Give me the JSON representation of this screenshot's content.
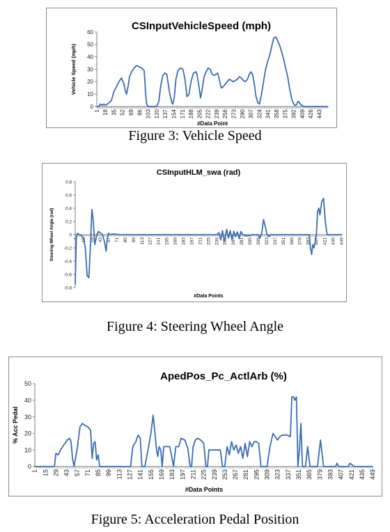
{
  "figures": [
    {
      "caption": "Figure 3: Vehicle Speed"
    },
    {
      "caption": "Figure 4: Steering Wheel Angle"
    },
    {
      "caption": "Figure 5: Acceleration Pedal Position"
    }
  ],
  "colors": {
    "line": "#3b6db3",
    "axis": "#7f7f7f",
    "grid": "#bfbfbf"
  },
  "chart_data": [
    {
      "type": "line",
      "title": "CSInputVehicleSpeed (mph)",
      "xlabel": "#Data Point",
      "ylabel": "Vehicle Speed (mph)",
      "ylim": [
        0,
        60
      ],
      "yticks": [
        "0",
        "10",
        "20",
        "30",
        "40",
        "50",
        "60"
      ],
      "xlim": [
        1,
        460
      ],
      "xticks": [
        "1",
        "18",
        "35",
        "52",
        "69",
        "86",
        "103",
        "120",
        "137",
        "154",
        "171",
        "188",
        "205",
        "222",
        "239",
        "256",
        "273",
        "290",
        "307",
        "324",
        "341",
        "358",
        "375",
        "392",
        "409",
        "426",
        "443"
      ],
      "grid": false,
      "legend": "none",
      "series": [
        {
          "x": [
            1,
            5,
            8,
            12,
            15,
            18,
            22,
            25,
            30,
            35,
            40,
            45,
            50,
            55,
            58,
            60,
            63,
            66,
            70,
            75,
            80,
            85,
            90,
            95,
            98,
            100,
            103,
            110,
            115,
            118,
            121,
            124,
            128,
            132,
            136,
            140,
            145,
            150,
            152,
            155,
            158,
            162,
            167,
            172,
            176,
            180,
            184,
            188,
            193,
            198,
            200,
            203,
            207,
            211,
            214,
            218,
            222,
            226,
            230,
            234,
            238,
            241,
            244,
            248,
            252,
            256,
            260,
            264,
            268,
            272,
            276,
            280,
            284,
            288,
            292,
            296,
            300,
            304,
            307,
            310,
            313,
            317,
            321,
            324,
            328,
            332,
            336,
            340,
            344,
            348,
            352,
            356,
            359,
            362,
            365,
            368,
            372,
            376,
            380,
            384,
            388,
            392,
            394,
            396,
            398,
            400,
            402,
            405,
            408,
            412,
            416,
            419,
            423,
            426,
            430,
            440,
            450,
            460
          ],
          "y": [
            0,
            0,
            2,
            1,
            2,
            1,
            2,
            3,
            5,
            12,
            16,
            20,
            23,
            18,
            12,
            10,
            16,
            24,
            28,
            31,
            33,
            32,
            31,
            29,
            10,
            2,
            0,
            0,
            0,
            0,
            1,
            4,
            17,
            25,
            27,
            26,
            12,
            3,
            2,
            8,
            22,
            29,
            31,
            30,
            22,
            8,
            10,
            20,
            27,
            28,
            26,
            18,
            7,
            16,
            24,
            28,
            31,
            30,
            26,
            25,
            26,
            27,
            22,
            15,
            16,
            18,
            20,
            22,
            21,
            20,
            21,
            22,
            24,
            23,
            21,
            20,
            22,
            26,
            28,
            26,
            20,
            8,
            3,
            2,
            10,
            20,
            30,
            36,
            41,
            48,
            55,
            56,
            54,
            51,
            48,
            44,
            38,
            31,
            24,
            14,
            6,
            2,
            1,
            1,
            2,
            4,
            4,
            2,
            1,
            0,
            0,
            0,
            0,
            0,
            0,
            0,
            0,
            0
          ]
        }
      ]
    },
    {
      "type": "line",
      "title": "CSInputHLM_swa (rad)",
      "xlabel": "#Data Points",
      "ylabel": "Steering Wheel Angle (rad)",
      "ylim": [
        -0.8,
        0.8
      ],
      "yticks": [
        "-0.8",
        "-0.6",
        "-0.4",
        "-0.2",
        "0",
        "0.2",
        "0.4",
        "0.6",
        "0.8"
      ],
      "xlim": [
        1,
        450
      ],
      "xticks": [
        "1",
        "15",
        "29",
        "43",
        "57",
        "71",
        "85",
        "99",
        "113",
        "127",
        "141",
        "155",
        "169",
        "183",
        "197",
        "211",
        "225",
        "239",
        "253",
        "267",
        "281",
        "295",
        "309",
        "323",
        "337",
        "351",
        "365",
        "379",
        "393",
        "407",
        "421",
        "435",
        "449"
      ],
      "grid": false,
      "legend": "none",
      "series": [
        {
          "x": [
            1,
            3,
            5,
            8,
            12,
            15,
            18,
            21,
            24,
            27,
            29,
            31,
            34,
            37,
            40,
            43,
            47,
            50,
            53,
            55,
            57,
            60,
            65,
            75,
            95,
            130,
            200,
            240,
            243,
            246,
            249,
            252,
            256,
            259,
            262,
            265,
            268,
            271,
            274,
            277,
            280,
            283,
            290,
            300,
            305,
            309,
            312,
            315,
            318,
            321,
            324,
            327,
            330,
            340,
            360,
            380,
            395,
            397,
            399,
            401,
            403,
            405,
            407,
            409,
            411,
            413,
            416,
            419,
            422,
            425,
            430,
            440,
            450
          ],
          "y": [
            -0.75,
            -0.02,
            0.02,
            0.0,
            -0.02,
            -0.05,
            -0.2,
            -0.62,
            -0.65,
            -0.1,
            0.38,
            0.25,
            -0.15,
            -0.02,
            0.05,
            0.03,
            0.0,
            -0.1,
            -0.25,
            -0.05,
            0.02,
            0.0,
            0.01,
            0.0,
            0.0,
            0.0,
            0.0,
            0.0,
            0.03,
            -0.08,
            0.06,
            -0.1,
            0.08,
            -0.05,
            0.06,
            -0.08,
            0.05,
            -0.03,
            0.04,
            -0.06,
            0.05,
            0.0,
            -0.02,
            0.0,
            0.0,
            0.0,
            -0.05,
            0.02,
            0.23,
            0.12,
            0.0,
            -0.03,
            0.0,
            0.0,
            0.0,
            0.0,
            0.0,
            -0.2,
            -0.3,
            -0.15,
            -0.2,
            -0.1,
            0.0,
            0.35,
            0.4,
            0.3,
            0.5,
            0.55,
            0.2,
            0.0,
            0.0,
            0.0,
            0.0
          ]
        }
      ]
    },
    {
      "type": "line",
      "title": "ApedPos_Pc_ActlArb (%)",
      "xlabel": "#Data Points",
      "ylabel": "% Acc Pedal",
      "ylim": [
        0,
        50
      ],
      "yticks": [
        "0",
        "10",
        "20",
        "30",
        "40",
        "50"
      ],
      "xlim": [
        1,
        450
      ],
      "xticks": [
        "1",
        "15",
        "29",
        "43",
        "57",
        "71",
        "85",
        "99",
        "113",
        "127",
        "141",
        "155",
        "169",
        "183",
        "197",
        "211",
        "225",
        "239",
        "253",
        "267",
        "281",
        "295",
        "309",
        "323",
        "337",
        "351",
        "365",
        "379",
        "393",
        "407",
        "421",
        "435",
        "449"
      ],
      "grid": false,
      "legend": "none",
      "series": [
        {
          "x": [
            1,
            20,
            27,
            29,
            32,
            35,
            38,
            41,
            44,
            47,
            49,
            51,
            53,
            57,
            61,
            64,
            67,
            71,
            75,
            77,
            79,
            81,
            83,
            85,
            87,
            89,
            91,
            95,
            100,
            128,
            131,
            135,
            138,
            141,
            143,
            145,
            147,
            152,
            155,
            158,
            160,
            162,
            164,
            166,
            168,
            170,
            172,
            175,
            180,
            185,
            188,
            192,
            195,
            200,
            204,
            207,
            209,
            211,
            214,
            217,
            221,
            225,
            228,
            230,
            232,
            235,
            239,
            243,
            247,
            250,
            253,
            256,
            259,
            262,
            265,
            268,
            271,
            274,
            277,
            280,
            283,
            286,
            289,
            292,
            295,
            298,
            301,
            305,
            309,
            313,
            317,
            320,
            323,
            326,
            329,
            332,
            336,
            340,
            342,
            344,
            346,
            348,
            350,
            352,
            354,
            356,
            358,
            360,
            363,
            366,
            372,
            374,
            376,
            380,
            384,
            386,
            388,
            392,
            400,
            402,
            404,
            410,
            415,
            417,
            419,
            425,
            449
          ],
          "y": [
            0,
            0,
            0,
            8,
            7,
            10,
            12,
            14,
            16,
            17,
            15,
            5,
            0,
            10,
            24,
            26,
            25,
            24,
            22,
            5,
            14,
            15,
            4,
            7,
            0,
            0,
            0,
            0,
            0,
            0,
            12,
            15,
            19,
            17,
            0,
            0,
            0,
            12,
            20,
            31,
            22,
            12,
            6,
            12,
            10,
            0,
            12,
            12,
            12,
            0,
            12,
            12,
            17,
            16,
            11,
            0,
            0,
            12,
            16,
            17,
            16,
            14,
            0,
            0,
            10,
            10,
            10,
            10,
            10,
            0,
            0,
            12,
            7,
            15,
            10,
            13,
            8,
            12,
            5,
            14,
            6,
            15,
            12,
            15,
            15,
            14,
            0,
            0,
            0,
            12,
            20,
            18,
            16,
            18,
            19,
            19,
            19,
            18,
            42,
            42,
            40,
            42,
            0,
            10,
            26,
            0,
            0,
            0,
            12,
            0,
            0,
            0,
            0,
            16,
            0,
            0,
            0,
            0,
            0,
            2,
            0,
            0,
            0,
            0,
            2,
            0,
            0
          ]
        }
      ]
    }
  ]
}
